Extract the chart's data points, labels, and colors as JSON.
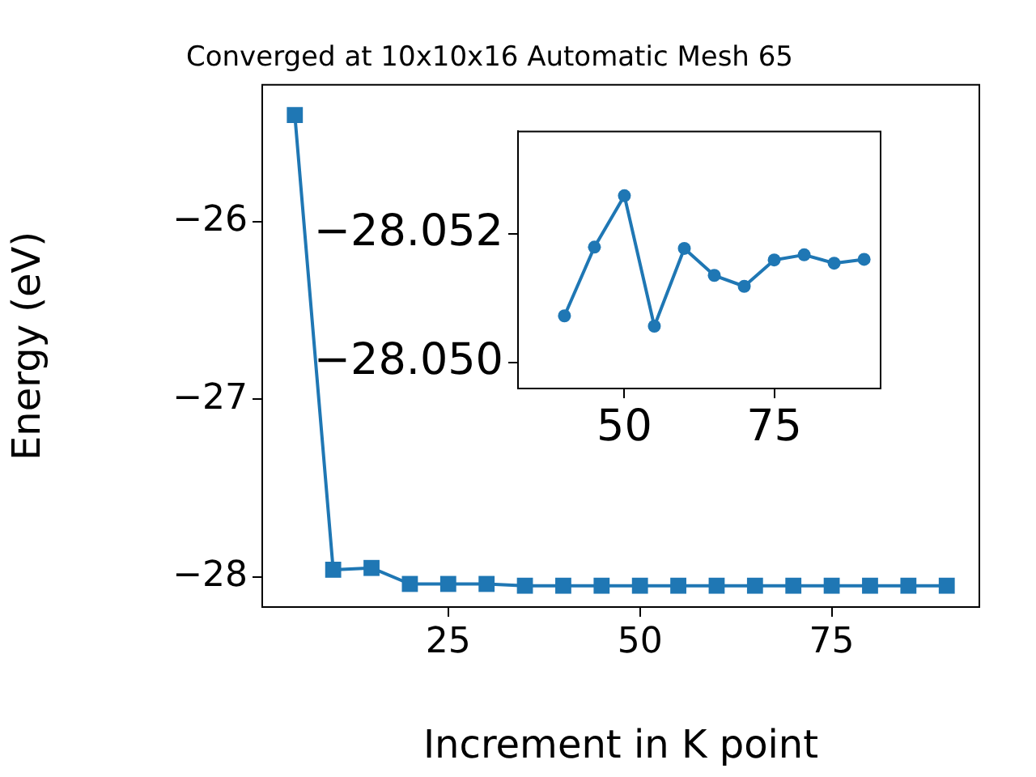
{
  "chart_data": [
    {
      "type": "line",
      "title": "Converged at 10x10x16 Automatic Mesh 65",
      "xlabel": "Increment in K point",
      "ylabel": "Energy (eV)",
      "x": [
        5,
        10,
        15,
        20,
        25,
        30,
        35,
        40,
        45,
        50,
        55,
        60,
        65,
        70,
        75,
        80,
        85,
        90
      ],
      "series": [
        {
          "color": "#1f77b4",
          "values": [
            -25.4,
            -27.96,
            -27.95,
            -28.04,
            -28.04,
            -28.04,
            -28.05,
            -28.05,
            -28.05,
            -28.05,
            -28.05,
            -28.05,
            -28.05,
            -28.05,
            -28.05,
            -28.05,
            -28.05,
            -28.05
          ]
        }
      ],
      "xlim": [
        0.75,
        94.25
      ],
      "ylim": [
        -28.17,
        -25.23
      ],
      "xticks": [
        25,
        50,
        75
      ],
      "yticks": [
        {
          "value": -28,
          "label": "−28"
        },
        {
          "value": -27,
          "label": "−27"
        },
        {
          "value": -26,
          "label": "−26"
        }
      ],
      "marker": "square",
      "line_style": "solid",
      "grid": false,
      "legend": false
    },
    {
      "type": "line",
      "x": [
        40,
        45,
        50,
        55,
        60,
        65,
        70,
        75,
        80,
        85,
        90
      ],
      "series": [
        {
          "color": "#1f77b4",
          "values": [
            -28.05073,
            -28.0518,
            -28.0526,
            -28.05057,
            -28.05178,
            -28.05136,
            -28.05119,
            -28.0516,
            -28.05168,
            -28.05155,
            -28.05161
          ]
        }
      ],
      "xlim": [
        32.25,
        92.75
      ],
      "ylim": [
        -28.0496,
        -28.0536
      ],
      "xticks": [
        50,
        75
      ],
      "yticks": [
        {
          "value": -28.052,
          "label": "−28.052"
        },
        {
          "value": -28.05,
          "label": "−28.050"
        }
      ],
      "marker": "circle",
      "line_style": "solid",
      "grid": false,
      "legend": false
    }
  ]
}
